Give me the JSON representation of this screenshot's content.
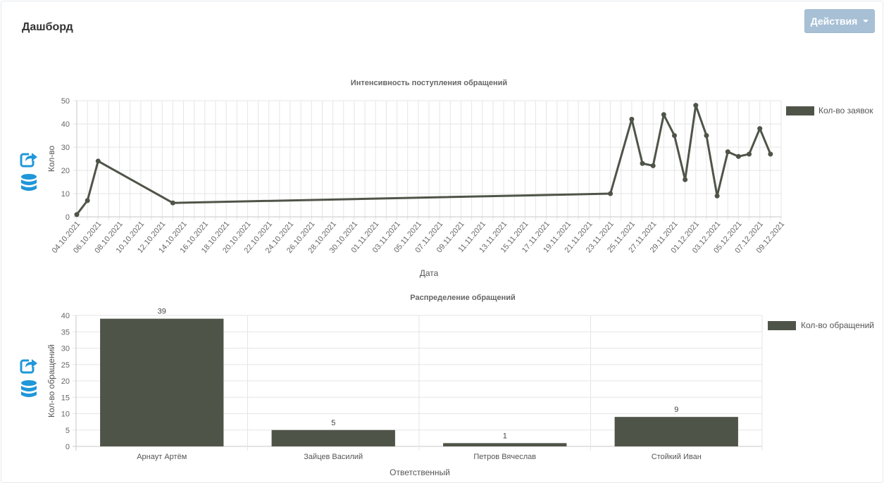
{
  "header": {
    "title": "Дашборд",
    "actions_label": "Действия"
  },
  "toolbar_icons": [
    "share-arrow-icon",
    "database-icon"
  ],
  "colors": {
    "series": "#4f5448",
    "grid": "#e5e5e5",
    "axis": "#c7c7c7",
    "tick_text": "#666666",
    "icon_blue": "#1f97d9",
    "button": "#a7c0d6"
  },
  "chart_data": [
    {
      "type": "line",
      "title": "Интенсивность поступления обращений",
      "xlabel": "Дата",
      "ylabel": "Кол-во",
      "legend": "Кол-во заявок",
      "legend_position": "right",
      "grid": true,
      "ylim": [
        0,
        50
      ],
      "yticks": [
        0,
        10,
        20,
        30,
        40,
        50
      ],
      "xticks": [
        "04.10.2021",
        "06.10.2021",
        "08.10.2021",
        "10.10.2021",
        "12.10.2021",
        "14.10.2021",
        "16.10.2021",
        "18.10.2021",
        "20.10.2021",
        "22.10.2021",
        "24.10.2021",
        "26.10.2021",
        "28.10.2021",
        "30.10.2021",
        "01.11.2021",
        "03.11.2021",
        "05.11.2021",
        "07.11.2021",
        "09.11.2021",
        "11.11.2021",
        "13.11.2021",
        "15.11.2021",
        "17.11.2021",
        "19.11.2021",
        "21.11.2021",
        "23.11.2021",
        "25.11.2021",
        "27.11.2021",
        "29.11.2021",
        "01.12.2021",
        "03.12.2021",
        "05.12.2021",
        "07.12.2021",
        "09.12.2021"
      ],
      "points": [
        {
          "x": "04.10.2021",
          "y": 1
        },
        {
          "x": "05.10.2021",
          "y": 7
        },
        {
          "x": "06.10.2021",
          "y": 24
        },
        {
          "x": "13.10.2021",
          "y": 6
        },
        {
          "x": "23.11.2021",
          "y": 10
        },
        {
          "x": "25.11.2021",
          "y": 42
        },
        {
          "x": "26.11.2021",
          "y": 23
        },
        {
          "x": "27.11.2021",
          "y": 22
        },
        {
          "x": "28.11.2021",
          "y": 44
        },
        {
          "x": "29.11.2021",
          "y": 35
        },
        {
          "x": "30.11.2021",
          "y": 16
        },
        {
          "x": "01.12.2021",
          "y": 48
        },
        {
          "x": "02.12.2021",
          "y": 35
        },
        {
          "x": "03.12.2021",
          "y": 9
        },
        {
          "x": "04.12.2021",
          "y": 28
        },
        {
          "x": "05.12.2021",
          "y": 26
        },
        {
          "x": "06.12.2021",
          "y": 27
        },
        {
          "x": "07.12.2021",
          "y": 38
        },
        {
          "x": "08.12.2021",
          "y": 27
        }
      ]
    },
    {
      "type": "bar",
      "title": "Распределение обращений",
      "xlabel": "Ответственный",
      "ylabel": "Кол-во обращений",
      "legend": "Кол-во обращений",
      "legend_position": "right",
      "grid": true,
      "ylim": [
        0,
        40
      ],
      "yticks": [
        0,
        5,
        10,
        15,
        20,
        25,
        30,
        35,
        40
      ],
      "categories": [
        "Арнаут Артём",
        "Зайцев Василий",
        "Петров Вячеслав",
        "Стойкий Иван"
      ],
      "values": [
        39,
        5,
        1,
        9
      ]
    }
  ]
}
